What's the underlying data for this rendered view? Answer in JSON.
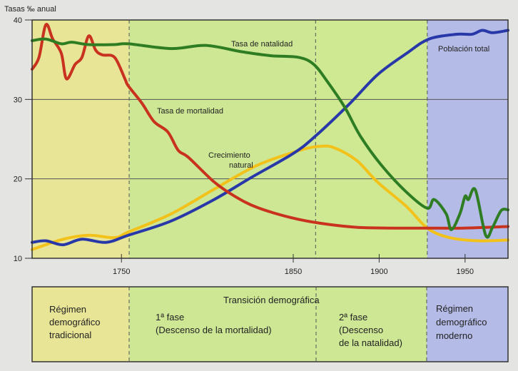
{
  "chart_data": {
    "type": "line",
    "title": "",
    "ylabel": "Tasas ‰ anual",
    "xlabel": "",
    "xlim": [
      1698,
      1975
    ],
    "ylim": [
      10,
      40
    ],
    "yticks": [
      10,
      20,
      30,
      40
    ],
    "xticks": [
      1750,
      1850,
      1900,
      1950
    ],
    "grid": true,
    "phases": [
      {
        "name": "tradicional",
        "from": 1698,
        "to": 1754.5,
        "color": "#e9e597"
      },
      {
        "name": "fase1",
        "from": 1754.5,
        "to": 1863,
        "color": "#cde795"
      },
      {
        "name": "fase2",
        "from": 1863,
        "to": 1928,
        "color": "#cfe992"
      },
      {
        "name": "moderno",
        "from": 1928,
        "to": 1975,
        "color": "#b4bbe6"
      }
    ],
    "series": [
      {
        "name": "Tasa de natalidad",
        "color": "#2e7d23",
        "x": [
          1698,
          1706,
          1715,
          1721,
          1731,
          1746,
          1754,
          1779,
          1799,
          1820,
          1837,
          1853,
          1862,
          1870,
          1880,
          1889,
          1901,
          1916,
          1928,
          1932,
          1939,
          1942,
          1947,
          1950,
          1952,
          1956,
          1962,
          1966,
          1971,
          1975
        ],
        "y": [
          37.4,
          37.6,
          37.0,
          37.2,
          36.9,
          36.9,
          37.0,
          36.4,
          36.8,
          36.0,
          35.5,
          35.3,
          34.4,
          32.2,
          29.0,
          25.4,
          21.8,
          18.3,
          16.3,
          17.4,
          15.6,
          13.6,
          15.6,
          17.8,
          17.4,
          18.6,
          12.9,
          13.9,
          16.0,
          16.1
        ]
      },
      {
        "name": "Tasa de mortalidad",
        "color": "#c8321e",
        "x": [
          1698,
          1702,
          1706,
          1710,
          1715,
          1718,
          1723,
          1727,
          1731,
          1735,
          1739,
          1746,
          1752,
          1754,
          1762,
          1769,
          1777,
          1783,
          1789,
          1804,
          1816,
          1829,
          1849,
          1866,
          1887,
          1908,
          1928,
          1949,
          1975
        ],
        "y": [
          33.8,
          35.3,
          39.4,
          37.6,
          35.8,
          32.6,
          34.4,
          35.3,
          38.0,
          36.2,
          35.6,
          35.3,
          32.6,
          31.7,
          29.5,
          27.2,
          25.9,
          23.6,
          22.7,
          19.6,
          17.8,
          16.4,
          15.1,
          14.4,
          13.9,
          13.8,
          13.8,
          13.8,
          14.0
        ]
      },
      {
        "name": "Crecimiento natural",
        "color": "#f2c21a",
        "x": [
          1698,
          1716,
          1731,
          1746,
          1754,
          1779,
          1804,
          1829,
          1854,
          1866,
          1874,
          1887,
          1899,
          1916,
          1928,
          1941,
          1958,
          1975
        ],
        "y": [
          11.1,
          12.4,
          12.9,
          12.6,
          13.3,
          15.6,
          18.7,
          21.7,
          23.6,
          24.1,
          23.9,
          22.3,
          19.6,
          16.5,
          13.8,
          12.6,
          12.2,
          12.3
        ]
      },
      {
        "name": "Población total",
        "color": "#2838a8",
        "x": [
          1698,
          1706,
          1716,
          1727,
          1741,
          1754,
          1779,
          1804,
          1825,
          1850,
          1863,
          1883,
          1899,
          1916,
          1929,
          1945,
          1954,
          1960,
          1966,
          1975
        ],
        "y": [
          12.0,
          12.2,
          11.7,
          12.4,
          12.0,
          12.9,
          14.7,
          17.4,
          20.1,
          23.2,
          25.4,
          29.5,
          33.1,
          35.8,
          37.6,
          38.2,
          38.2,
          38.7,
          38.4,
          38.7
        ]
      }
    ],
    "annotations": {
      "natalidad": "Tasa de natalidad",
      "mortalidad": "Tasa de mortalidad",
      "crecimiento_1": "Crecimiento",
      "crecimiento_2": "natural",
      "poblacion": "Población total"
    }
  },
  "panel": {
    "transicion": "Transición demográfica",
    "tradicional": [
      "Régimen",
      "demográfico",
      "tradicional"
    ],
    "fase1": [
      "1ª fase",
      "(Descenso de la mortalidad)"
    ],
    "fase2": [
      "2ª fase",
      "(Descenso",
      "de la natalidad)"
    ],
    "moderno": [
      "Régimen",
      "demográfico",
      "moderno"
    ]
  }
}
